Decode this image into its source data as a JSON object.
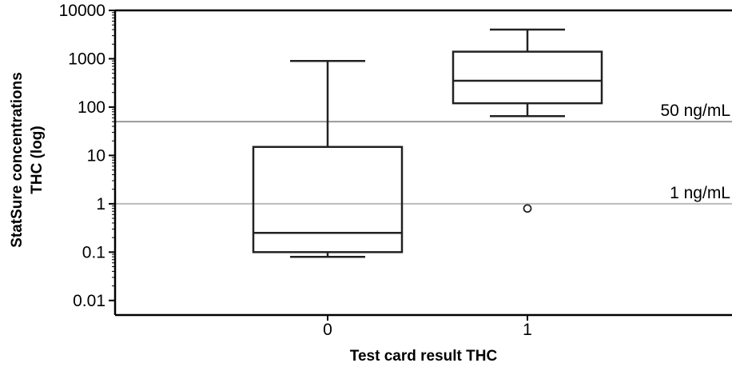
{
  "chart_data": {
    "type": "box",
    "xlabel": "Test card result THC",
    "ylabel_lines": [
      "StatSure concentrations",
      "THC (log)"
    ],
    "y_scale": "log",
    "ylim": [
      0.005,
      10000
    ],
    "y_ticks": [
      10000,
      1000,
      100,
      10,
      1,
      0.1,
      0.01
    ],
    "y_tick_labels": [
      "10000",
      "1000",
      "100",
      "10",
      "1",
      "0.1",
      "0.01"
    ],
    "categories": [
      "0",
      "1"
    ],
    "boxes": [
      {
        "category": "0",
        "whisker_low": 0.08,
        "q1": 0.1,
        "median": 0.25,
        "q3": 15,
        "whisker_high": 900,
        "outliers": []
      },
      {
        "category": "1",
        "whisker_low": 65,
        "q1": 120,
        "median": 350,
        "q3": 1400,
        "whisker_high": 4000,
        "outliers": [
          0.8
        ]
      }
    ],
    "reference_lines": [
      {
        "value": 50,
        "label": "50 ng/mL",
        "color": "#999999"
      },
      {
        "value": 1,
        "label": "1 ng/mL",
        "color": "#bbbbbb"
      }
    ],
    "grid": false,
    "legend": "none"
  }
}
